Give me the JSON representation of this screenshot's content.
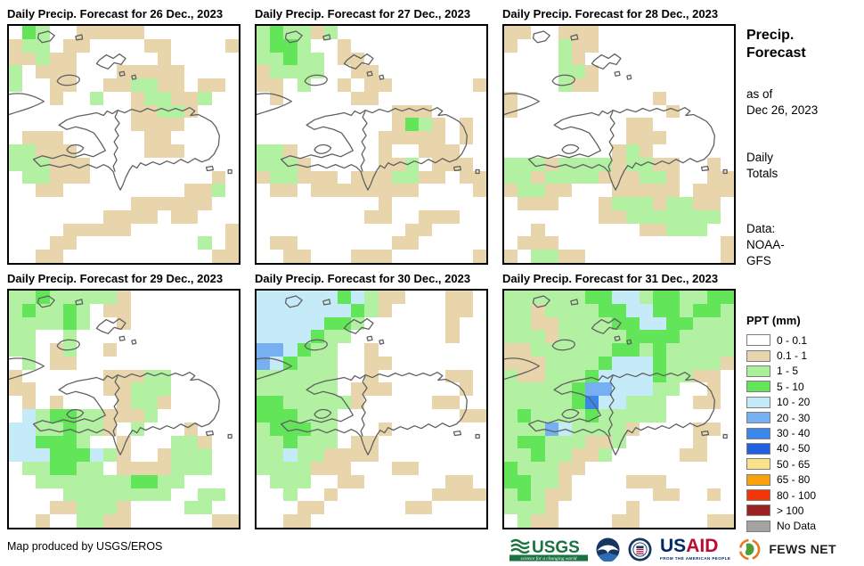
{
  "panels": [
    {
      "title": "Daily Precip. Forecast for 26 Dec., 2023",
      "grid": [
        ".Gg..ttttt.......",
        "tgg.tt....tt....t",
        "ttgtt......t.....",
        "g.ttt...ttttt....",
        "g..tt..ttggtt.tt.",
        "...t..g..tggttg..",
        ".........ttggt...",
        ".........tttt....",
        ".ttt......tt.....",
        "ggttt.....ttt....",
        "gggttt...........",
        ".ggttt.........t.",
        "..tt.........ttg.",
        ".........tttttt..",
        ".......tttt.tt...",
        "....ttttt.......t",
        "...tt.........g.t",
        "..tt...........tt"
      ]
    },
    {
      "title": "Daily Precip. Forecast for 27 Dec., 2023",
      "grid": [
        "gGggtg...........",
        "gGGg..t..........",
        "ggGgg.tt.........",
        "tgggg..tt........",
        "tt.g..t.tt......t",
        ".t.....tt........",
        "..........ttt....",
        "..........tGgt.t.",
        ".........ttttt.t.",
        "ggt......t..ttt..",
        "gggt.....ttg.ttt.",
        "tggttt.tttggtt.tt",
        ".tt.tttttttt....t",
        ".........t.......",
        "........tt..ttt..",
        "...........tt....",
        ".tt.......tt.....",
        "..tt...ttt......t"
      ]
    },
    {
      "title": "Daily Precip. Forecast for 28 Dec., 2023",
      "grid": [
        "tt..ttt..........",
        "t...gtt..........",
        "....gt...........",
        "....ggt..........",
        "....gtt..........",
        "t..........t.....",
        "t...........t....",
        ".........tt......",
        ".........ttt.....",
        "........tgt......",
        "gggtggggtggtt..t.",
        "ggtggggtttggt..tt",
        "tggtt...ttttt.ttt",
        ".ttt...tgggtggtt.",
        ".......ttggggggg.",
        "..t.......ttggg..",
        ".ttt............t",
        "t.ggtt..........t"
      ]
    },
    {
      "title": "Daily Precip. Forecast for 29 Dec., 2023",
      "grid": [
        "ggGgggggt........",
        "gGggGg.tt........",
        "ggggGg..t........",
        "gg..g............",
        "gg.tg..t.........",
        ".g.tt............",
        "t......tttgg.....",
        "tt.....ttggg.....",
        ".t.t....tggt.....",
        ".cgGGggtttg......",
        "ccggGggt.g...t...",
        "ccGGGg..t...ggt..",
        "cccGGGcgt..tggg..",
        ".ggGGgg.ttttggg..",
        "..gggggggGGgg....",
        "....gggggggg..gg.",
        "...ttgggt....gg..",
        "..t..ggtt......tt"
      ]
    },
    {
      "title": "Daily Precip. Forecast for 30 Dec., 2023",
      "grid": [
        "ccccccGcgtt...tt.",
        "cccccccGgt....tt.",
        "cccccGGg......t..",
        "ccccGgg.......t..",
        "bbcGgg..t........",
        "bcGggg..tt.......",
        "gggggg..t.....tt.",
        "gggggg.ttt.....t.",
        "GGgggggt.....tt..",
        "GGGggg.........tt",
        "gGGGgg...t.......",
        "ggGggg.tt........",
        "ggcggtttt........",
        "ggggttt...tt.....",
        ".ggg..tt......tt.",
        "..g..t.......tttt",
        "...tt......tt....",
        "..tt............."
      ]
    },
    {
      "title": "Daily Precip. Forecast for 31 Dec., 2023",
      "grid": [
        "ggggggGGccgGGggGG",
        "ggtggggGGccGGgGGg",
        "ggttggggGGccGGggg",
        "gggtgggggGGGGgggg",
        "ttggggggGGgGggggg",
        "tttggggGcccGggggt",
        "gttgggGccccGggtt.",
        "gggggGbbcccgg..t.",
        "gggggGBccggg..tt.",
        "gGggggGggggg.....",
        "gggbcggggt....tt.",
        "gGGgggttg.....t..",
        "ggGggttg.....tt..",
        "Ggggtt...........",
        "GGggt....ttt.....",
        "gGgtt......tt..t.",
        "gggt.....t.......",
        ".gtt....tt.....tt"
      ]
    }
  ],
  "palette": {
    ".": "#ffffff",
    "t": "#e8d5ac",
    "g": "#b2f0a2",
    "G": "#63e559",
    "c": "#c4ebf7",
    "b": "#76aff2",
    "B": "#3a86ec"
  },
  "sidebar": {
    "title_line1": "Precip.",
    "title_line2": "Forecast",
    "asof_line1": "as of",
    "asof_line2": "Dec 26, 2023",
    "mode_line1": "Daily",
    "mode_line2": "Totals",
    "data_line1": "Data:",
    "data_line2": "NOAA-",
    "data_line3": "GFS"
  },
  "legend": {
    "title": "PPT (mm)",
    "items": [
      {
        "label": "0 - 0.1",
        "color": "#ffffff"
      },
      {
        "label": "0.1 - 1",
        "color": "#e8d5ac"
      },
      {
        "label": "1 - 5",
        "color": "#aaef9a"
      },
      {
        "label": "5 - 10",
        "color": "#63e559"
      },
      {
        "label": "10 - 20",
        "color": "#c4ebf7"
      },
      {
        "label": "20 - 30",
        "color": "#76aff2"
      },
      {
        "label": "30 - 40",
        "color": "#3a86ec"
      },
      {
        "label": "40 - 50",
        "color": "#2360df"
      },
      {
        "label": "50 - 65",
        "color": "#fbe189"
      },
      {
        "label": "65 - 80",
        "color": "#f9a10b"
      },
      {
        "label": "80 - 100",
        "color": "#f43507"
      },
      {
        "label": "> 100",
        "color": "#9b2222"
      },
      {
        "label": "No Data",
        "color": "#a3a3a3"
      }
    ]
  },
  "footer": {
    "credit": "Map produced by USGS/EROS",
    "usgs_name": "USGS",
    "usgs_tagline": "science for a changing world",
    "usaid_us": "US",
    "usaid_aid": "AID",
    "usaid_tagline": "FROM THE AMERICAN PEOPLE",
    "fewsnet_name": "FEWS NET"
  }
}
